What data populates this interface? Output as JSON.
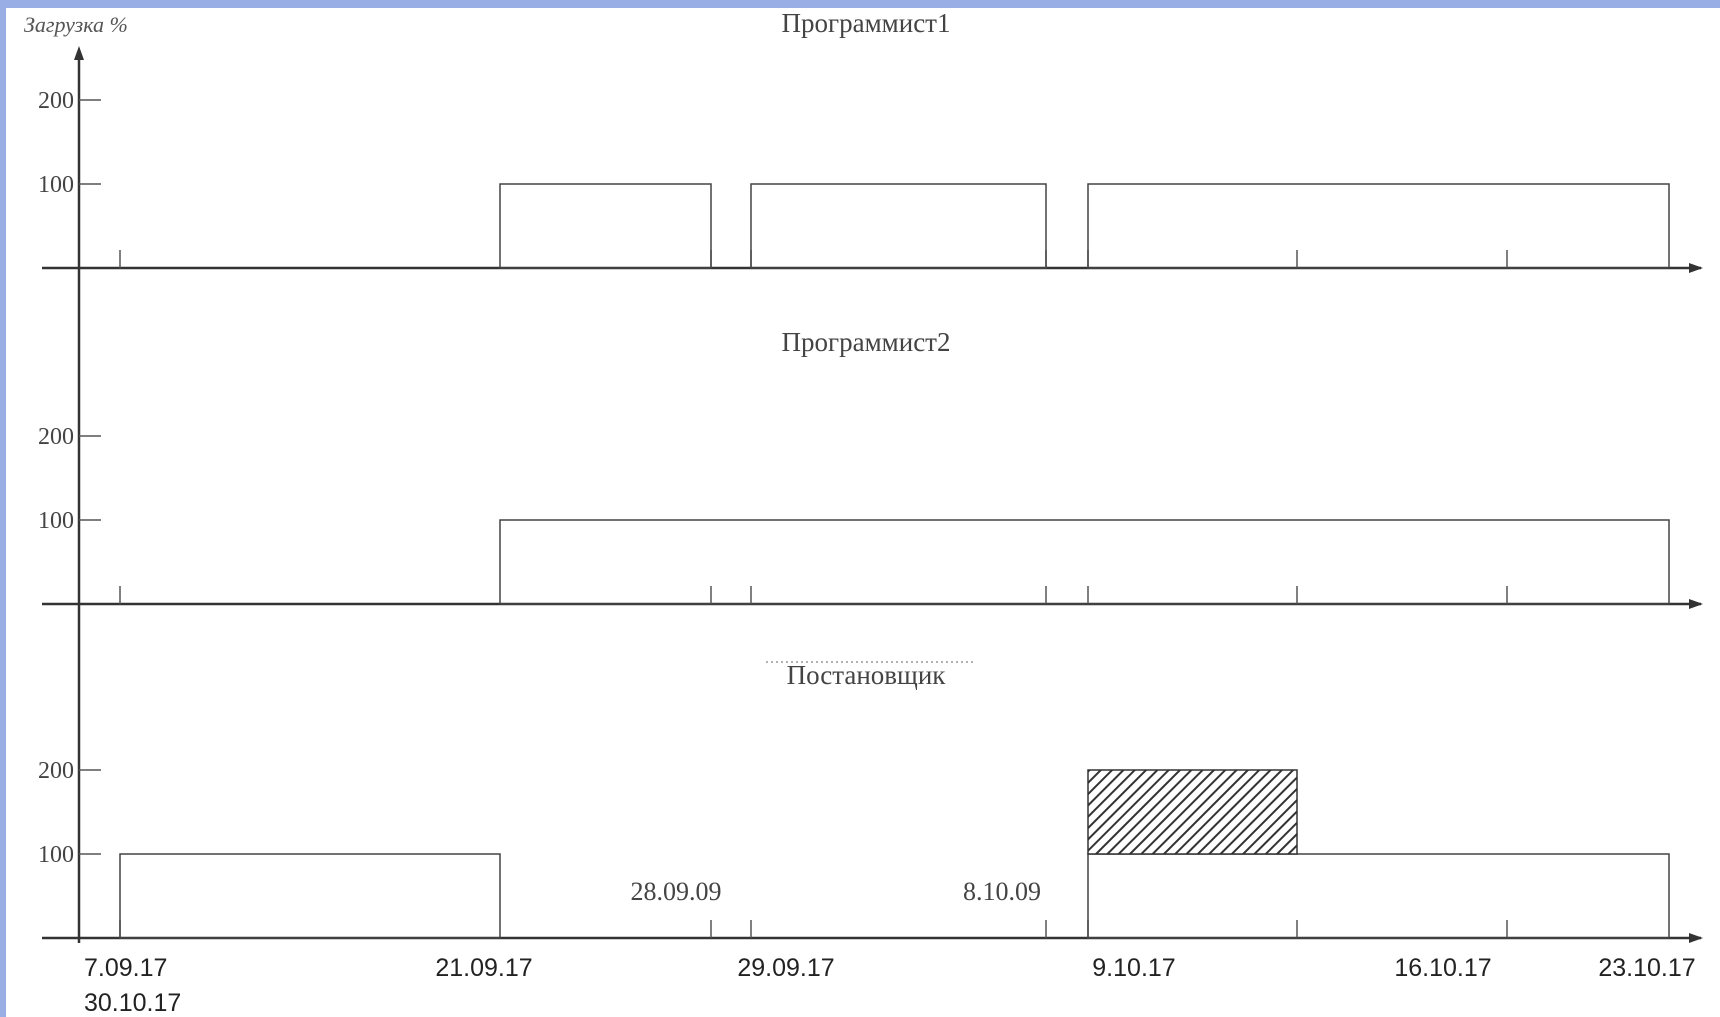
{
  "chart_data": {
    "type": "bar",
    "ylabel": "Загрузка %",
    "yticks": [
      100,
      200
    ],
    "x_dates": [
      "7.09.17",
      "21.09.17",
      "29.09.17",
      "9.10.17",
      "16.10.17",
      "23.10.17",
      "30.10.17"
    ],
    "x_annotations": [
      "28.09.09",
      "8.10.09"
    ],
    "panels": [
      {
        "title": "Программист1",
        "bars": [
          {
            "start": "21.09.17",
            "end": "28.09.09",
            "value": 100
          },
          {
            "start": "29.09.17",
            "end": "8.10.09",
            "value": 100
          },
          {
            "start": "9.10.17",
            "end": "23.10.17",
            "value": 100
          }
        ]
      },
      {
        "title": "Программист2",
        "bars": [
          {
            "start": "21.09.17",
            "end": "23.10.17",
            "value": 100
          }
        ]
      },
      {
        "title": "Постановщик",
        "bars": [
          {
            "start": "7.09.17",
            "end": "21.09.17",
            "value": 100
          },
          {
            "start": "9.10.17",
            "end": "23.10.17",
            "value": 100
          },
          {
            "start": "9.10.17",
            "end": "16.10.17",
            "value": 200,
            "overload": true
          }
        ]
      }
    ]
  }
}
